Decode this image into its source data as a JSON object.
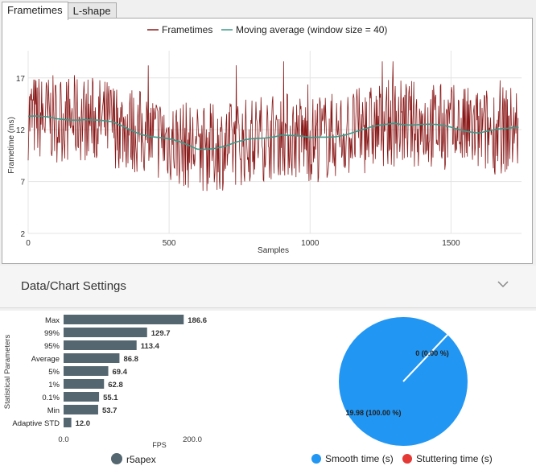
{
  "tabs": [
    {
      "label": "Frametimes",
      "active": true
    },
    {
      "label": "L-shape",
      "active": false
    }
  ],
  "settings": {
    "title": "Data/Chart Settings"
  },
  "colors": {
    "frametime_line": "#8b1a1a",
    "moving_avg_line": "#3a9a8a",
    "bar_fill": "#546670",
    "pie_smooth": "#2196f3",
    "pie_stutter": "#e53935"
  },
  "chart_data": [
    {
      "type": "line",
      "title": "",
      "xlabel": "Samples",
      "ylabel": "Frametime (ms)",
      "xlim": [
        0,
        1750
      ],
      "ylim": [
        2,
        19
      ],
      "x_ticks": [
        "0",
        "500",
        "1000",
        "1500"
      ],
      "y_ticks": [
        "2",
        "7",
        "12",
        "17"
      ],
      "grid": true,
      "legend_position": "top-center",
      "series": [
        {
          "name": "Frametimes",
          "description_values": "noisy, mostly 8–17 ms, peaks ~18.5 ms, dips ~5 ms",
          "n_samples": 1740
        },
        {
          "name": "Moving average (window size = 40)",
          "x": [
            0,
            100,
            200,
            300,
            400,
            500,
            600,
            700,
            800,
            900,
            1000,
            1100,
            1200,
            1300,
            1400,
            1500,
            1600,
            1700,
            1740
          ],
          "values": [
            13.3,
            13.0,
            13.1,
            12.6,
            11.7,
            11.0,
            10.2,
            10.4,
            11.1,
            11.6,
            11.1,
            11.5,
            12.0,
            12.7,
            12.5,
            12.2,
            11.8,
            12.0,
            12.2
          ]
        }
      ]
    },
    {
      "type": "bar",
      "orientation": "horizontal",
      "ylabel": "Statistical Parameters",
      "xlabel": "FPS",
      "xlim": [
        0,
        200
      ],
      "x_ticks": [
        "0.0",
        "200.0"
      ],
      "categories": [
        "Max",
        "99%",
        "95%",
        "Average",
        "5%",
        "1%",
        "0.1%",
        "Min",
        "Adaptive STD"
      ],
      "values": [
        186.6,
        129.7,
        113.4,
        86.8,
        69.4,
        62.8,
        55.1,
        53.7,
        12.0
      ],
      "value_labels": [
        "186.6",
        "129.7",
        "113.4",
        "86.8",
        "69.4",
        "62.8",
        "55.1",
        "53.7",
        "12.0"
      ],
      "legend": [
        {
          "name": "r5apex"
        }
      ]
    },
    {
      "type": "pie",
      "slices": [
        {
          "name": "Smooth time (s)",
          "value": 19.98,
          "label": "19.98 (100.00 %)"
        },
        {
          "name": "Stuttering time (s)",
          "value": 0,
          "label": "0 (0.00 %)"
        }
      ]
    }
  ]
}
